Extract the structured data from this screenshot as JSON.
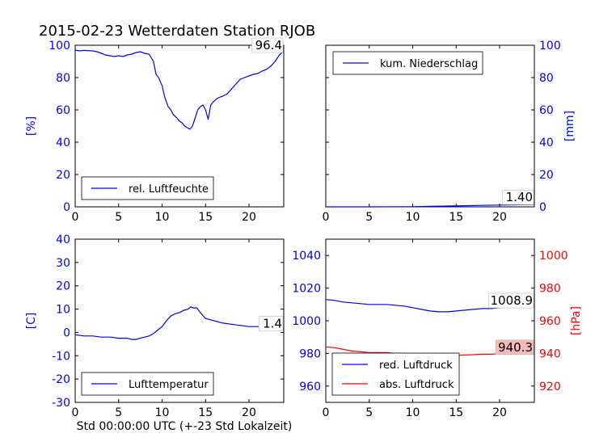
{
  "title": "2015-02-23 Wetterdaten Station RJOB",
  "colors": {
    "blue": "#0000ff",
    "red": "#ff0000",
    "black": "#000000",
    "callout_red": "#f4baba"
  },
  "chart_data": [
    {
      "id": "humidity",
      "type": "line",
      "ylabel": "[%]",
      "xlim": [
        0,
        24
      ],
      "ylim": [
        0,
        100
      ],
      "xticks": [
        0,
        5,
        10,
        15,
        20
      ],
      "yticks": [
        0,
        20,
        40,
        60,
        80,
        100
      ],
      "legend_placement": "lower-left",
      "last_value": "96.4",
      "series": [
        {
          "name": "rel. Luftfeuchte",
          "color": "#0000ff",
          "x": [
            0,
            0.5,
            1,
            2,
            2.5,
            3,
            3.5,
            4,
            4.5,
            5,
            5.5,
            6,
            6.5,
            7,
            7.5,
            8,
            8.5,
            9,
            9.3,
            9.6,
            10,
            10.3,
            10.7,
            11,
            11.3,
            11.7,
            12,
            12.3,
            12.6,
            12.9,
            13.2,
            13.5,
            13.8,
            14.1,
            14.4,
            14.7,
            15,
            15.3,
            15.6,
            15.9,
            16.3,
            16.7,
            17,
            17.5,
            18,
            18.5,
            19,
            19.5,
            20,
            20.5,
            21,
            21.5,
            22,
            22.5,
            23,
            23.5,
            24
          ],
          "y": [
            97,
            96.5,
            96.8,
            96.5,
            96,
            95,
            94,
            93.5,
            93,
            93.5,
            93,
            94,
            94.5,
            95.5,
            96,
            95,
            94.5,
            90,
            82,
            80,
            75,
            68,
            62,
            60,
            57,
            55,
            53,
            52,
            50,
            49,
            48,
            50,
            55,
            60,
            62,
            63,
            60,
            54,
            63,
            65,
            67,
            68,
            68.5,
            70,
            73,
            76,
            79,
            80,
            81,
            82,
            82.5,
            84,
            85,
            87,
            90,
            94,
            96.4
          ]
        }
      ]
    },
    {
      "id": "precipitation",
      "type": "line",
      "ylabel": "[mm]",
      "xlim": [
        0,
        24
      ],
      "ylim": [
        0,
        100
      ],
      "xticks": [
        0,
        5,
        10,
        15,
        20
      ],
      "yticks": [
        0,
        20,
        40,
        60,
        80,
        100
      ],
      "legend_placement": "upper-left",
      "last_value": "1.40",
      "series": [
        {
          "name": "kum. Niederschlag",
          "color": "#0000ff",
          "x": [
            0,
            5,
            10,
            12,
            14,
            16,
            18,
            20,
            22,
            24
          ],
          "y": [
            0,
            0,
            0.1,
            0.3,
            0.5,
            0.7,
            0.9,
            1.1,
            1.3,
            1.4
          ]
        }
      ]
    },
    {
      "id": "temperature",
      "type": "line",
      "ylabel": "[C]",
      "xlabel": "Std 00:00:00 UTC (+-23 Std Lokalzeit)",
      "xlim": [
        0,
        24
      ],
      "ylim": [
        -30,
        40
      ],
      "xticks": [
        0,
        5,
        10,
        15,
        20
      ],
      "yticks": [
        -30,
        -20,
        -10,
        0,
        10,
        20,
        30,
        40
      ],
      "legend_placement": "lower-left",
      "last_value": "1.4",
      "series": [
        {
          "name": "Lufttemperatur",
          "color": "#0000ff",
          "x": [
            0,
            1,
            2,
            3,
            4,
            5,
            6,
            6.5,
            7,
            7.5,
            8,
            8.5,
            9,
            9.5,
            10,
            10.5,
            11,
            11.5,
            12,
            12.5,
            13,
            13.3,
            13.6,
            14,
            14.5,
            15,
            15.5,
            16,
            17,
            18,
            19,
            20,
            21,
            22,
            23,
            24
          ],
          "y": [
            -1,
            -1.5,
            -1.5,
            -2,
            -2,
            -2.5,
            -2.5,
            -3,
            -3,
            -2.5,
            -2,
            -1.5,
            -0.5,
            1,
            2.5,
            5,
            7,
            8,
            8.5,
            9.5,
            10,
            11,
            10.5,
            10.5,
            8,
            6,
            5.5,
            5,
            4,
            3.5,
            3,
            2.5,
            2.5,
            2,
            1.8,
            1.4
          ]
        }
      ]
    },
    {
      "id": "pressure",
      "type": "line",
      "xlim": [
        0,
        24
      ],
      "ylim_left": [
        950,
        1050
      ],
      "ylim_right": [
        910,
        1010
      ],
      "yticks_left": [
        960,
        980,
        1000,
        1020,
        1040
      ],
      "yticks_right": [
        920,
        940,
        960,
        980,
        1000
      ],
      "ylabel_right": "[hPa]",
      "xticks": [
        0,
        5,
        10,
        15,
        20
      ],
      "legend_placement": "lower-left",
      "series": [
        {
          "name": "red. Luftdruck",
          "color": "#0000ff",
          "axis": "left",
          "last_value": "1008.9",
          "x": [
            0,
            1,
            2,
            3,
            4,
            5,
            6,
            7,
            8,
            9,
            10,
            11,
            12,
            13,
            14,
            15,
            16,
            17,
            18,
            19,
            20,
            21,
            22,
            23,
            24
          ],
          "y": [
            1013,
            1012.5,
            1011.5,
            1011,
            1010.5,
            1010,
            1010,
            1010,
            1009.5,
            1009,
            1008,
            1007,
            1006,
            1005.5,
            1005.5,
            1006,
            1006.5,
            1007,
            1007.5,
            1007.5,
            1008,
            1008.5,
            1008.7,
            1008.8,
            1008.9
          ]
        },
        {
          "name": "abs. Luftdruck",
          "color": "#ff0000",
          "axis": "right",
          "last_value": "940.3",
          "x": [
            0,
            1,
            2,
            3,
            4,
            5,
            6,
            7,
            8,
            9,
            10,
            11,
            12,
            13,
            14,
            15,
            16,
            17,
            18,
            19,
            20,
            21,
            22,
            23,
            24
          ],
          "y": [
            944,
            943.5,
            942.5,
            941.5,
            941,
            940.5,
            940.5,
            940.5,
            940,
            940,
            939.5,
            939.5,
            939,
            939,
            938.8,
            938.8,
            939,
            939.2,
            939.5,
            939.5,
            939.8,
            940,
            940.2,
            940.3,
            940.3
          ]
        }
      ]
    }
  ]
}
